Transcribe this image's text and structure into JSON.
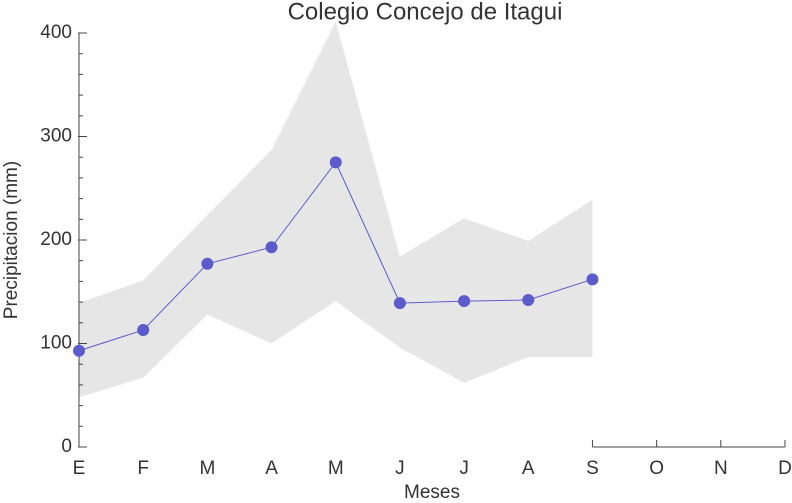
{
  "chart_data": {
    "type": "line",
    "title": "Colegio Concejo de Itagui",
    "x_label": "Meses",
    "y_label": "Precipitacion (mm)",
    "categories": [
      "E",
      "F",
      "M",
      "A",
      "M",
      "J",
      "J",
      "A",
      "S",
      "O",
      "N",
      "D"
    ],
    "series": [
      {
        "color": "#5b5bcc",
        "values": [
          93,
          113,
          177,
          193,
          275,
          139,
          141,
          142,
          162,
          null,
          null,
          null
        ]
      }
    ],
    "band": {
      "color": "#e6e6e6",
      "upper": [
        139,
        161,
        224,
        287,
        411,
        184,
        221,
        199,
        239,
        null,
        null,
        null
      ],
      "lower": [
        48,
        67,
        128,
        100,
        141,
        96,
        62,
        87,
        87,
        null,
        null,
        null
      ]
    },
    "ylim": [
      0,
      400
    ],
    "yticks": [
      0,
      100,
      200,
      300,
      400
    ],
    "grid": false
  }
}
